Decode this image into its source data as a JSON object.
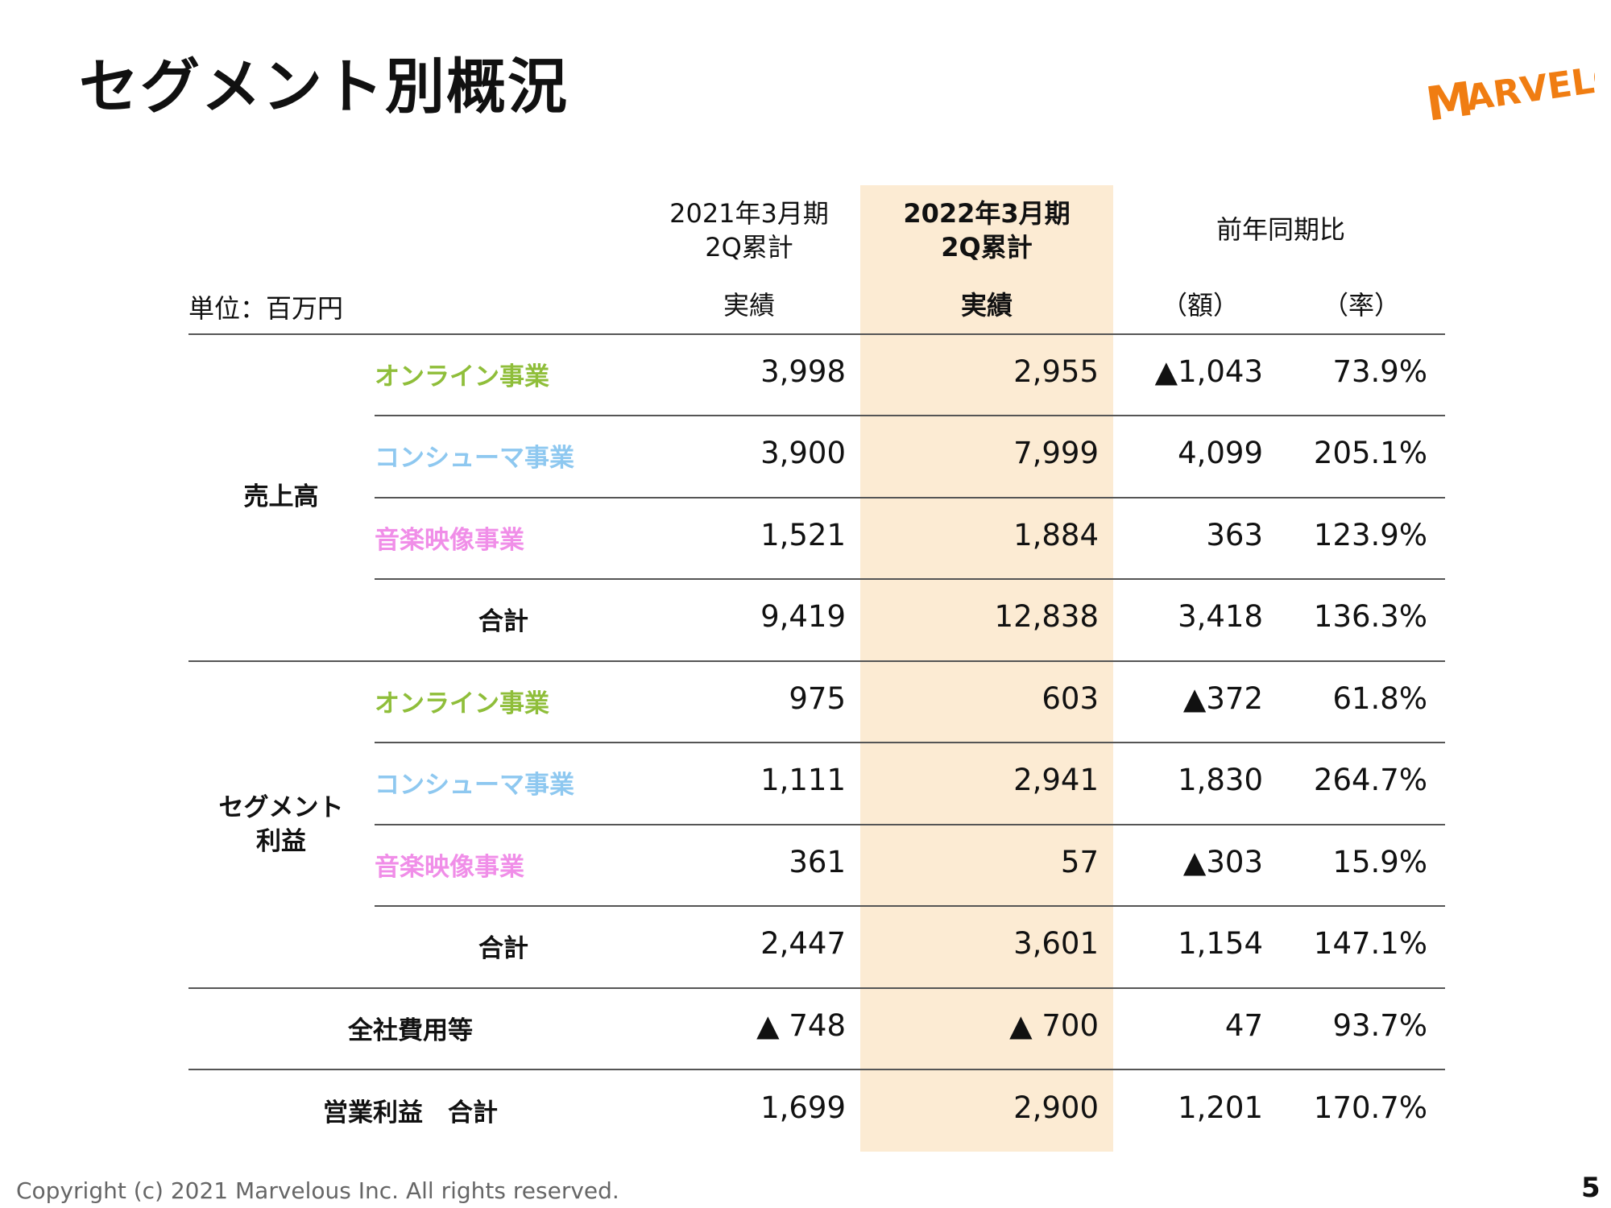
{
  "title": "セグメント別概況",
  "logo_text": "MARVELOUS!",
  "colors": {
    "online": "#8fbe3a",
    "consumer": "#8ec8f0",
    "music": "#f08ee8",
    "highlight": "#fcebd3",
    "logo": "#f07d12"
  },
  "table": {
    "unit": "単位：百万円",
    "headers": {
      "fy2021_line1": "2021年3月期",
      "fy2021_line2": "2Q累計",
      "fy2021_sub": "実績",
      "fy2022_line1": "2022年3月期",
      "fy2022_line2": "2Q累計",
      "fy2022_sub": "実績",
      "yoy": "前年同期比",
      "yoy_amount": "（額）",
      "yoy_rate": "（率）"
    },
    "groups": {
      "sales": "売上高",
      "segment_profit_line1": "セグメント",
      "segment_profit_line2": "利益"
    },
    "rows": [
      {
        "label": "オンライン事業",
        "prev": "3,998",
        "curr": "2,955",
        "diff": "▲1,043",
        "rate": "73.9%"
      },
      {
        "label": "コンシューマ事業",
        "prev": "3,900",
        "curr": "7,999",
        "diff": "4,099",
        "rate": "205.1%"
      },
      {
        "label": "音楽映像事業",
        "prev": "1,521",
        "curr": "1,884",
        "diff": "363",
        "rate": "123.9%"
      },
      {
        "label": "合計",
        "prev": "9,419",
        "curr": "12,838",
        "diff": "3,418",
        "rate": "136.3%"
      },
      {
        "label": "オンライン事業",
        "prev": "975",
        "curr": "603",
        "diff": "▲372",
        "rate": "61.8%"
      },
      {
        "label": "コンシューマ事業",
        "prev": "1,111",
        "curr": "2,941",
        "diff": "1,830",
        "rate": "264.7%"
      },
      {
        "label": "音楽映像事業",
        "prev": "361",
        "curr": "57",
        "diff": "▲303",
        "rate": "15.9%"
      },
      {
        "label": "合計",
        "prev": "2,447",
        "curr": "3,601",
        "diff": "1,154",
        "rate": "147.1%"
      },
      {
        "label": "全社費用等",
        "prev": "▲ 748",
        "curr": "▲ 700",
        "diff": "47",
        "rate": "93.7%"
      },
      {
        "label": "営業利益　合計",
        "prev": "1,699",
        "curr": "2,900",
        "diff": "1,201",
        "rate": "170.7%"
      }
    ]
  },
  "footer": "Copyright (c) 2021 Marvelous Inc. All rights reserved.",
  "page_number": "5"
}
